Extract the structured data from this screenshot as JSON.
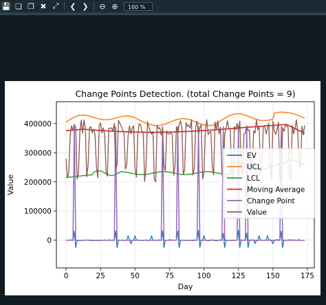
{
  "toolbar": {
    "icons": [
      "save-icon",
      "copy-icon",
      "copy-as-icon",
      "close-icon",
      "fit-icon",
      "back-icon",
      "forward-icon",
      "zoom-out-icon",
      "zoom-in-icon"
    ],
    "zoom_value": "160 %"
  },
  "chart_data": {
    "type": "line",
    "title": "Change Points Detection. (total Change Points = 9)",
    "xlabel": "Day",
    "ylabel": "Value",
    "xlim": [
      -7,
      180
    ],
    "ylim": [
      -95000,
      475000
    ],
    "xticks": [
      0,
      25,
      50,
      75,
      100,
      125,
      150,
      175
    ],
    "yticks": [
      0,
      100000,
      200000,
      300000,
      400000
    ],
    "ytick_labels": [
      "0",
      "100000",
      "200000",
      "300000",
      "400000"
    ],
    "legend_position": "center-right",
    "grid": true,
    "change_points": [
      6,
      36,
      70,
      81,
      96,
      114,
      125,
      131,
      156
    ],
    "series": [
      {
        "name": "EV",
        "color": "#1f77b4"
      },
      {
        "name": "UCL",
        "color": "#ff7f0e"
      },
      {
        "name": "LCL",
        "color": "#2ca02c"
      },
      {
        "name": "Moving Average",
        "color": "#d62728"
      },
      {
        "name": "Change Point",
        "color": "#9467bd"
      },
      {
        "name": "Value",
        "color": "#8c564b"
      }
    ]
  }
}
